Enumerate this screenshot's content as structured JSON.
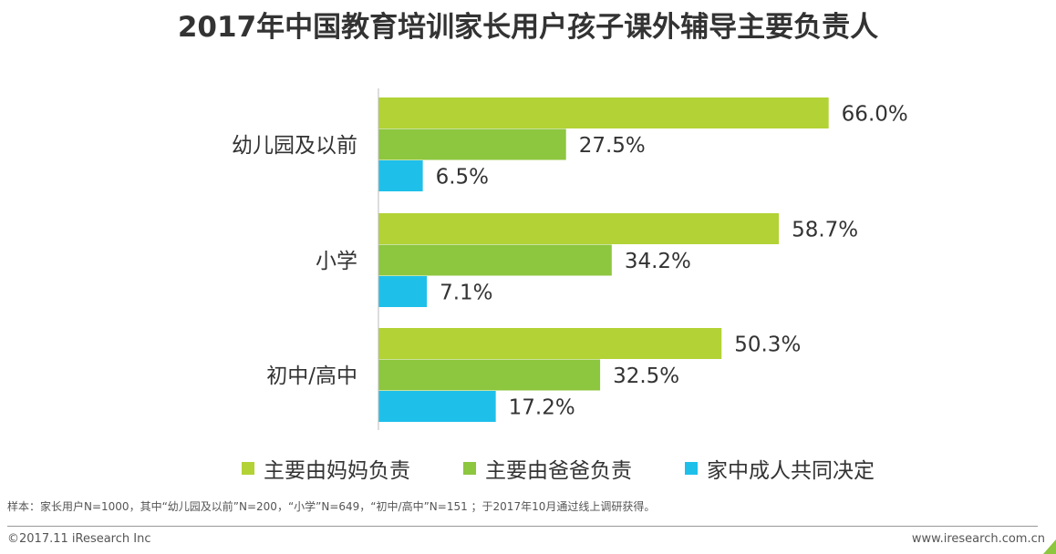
{
  "chart_data": {
    "type": "bar",
    "orientation": "horizontal",
    "title": "2017年中国教育培训家长用户孩子课外辅导主要负责人",
    "categories": [
      "幼儿园及以前",
      "小学",
      "初中/高中"
    ],
    "series": [
      {
        "name": "主要由妈妈负责",
        "color": "#b2d235",
        "values": [
          66.0,
          58.7,
          50.3
        ]
      },
      {
        "name": "主要由爸爸负责",
        "color": "#8dc63f",
        "values": [
          27.5,
          34.2,
          32.5
        ]
      },
      {
        "name": "家中成人共同决定",
        "color": "#1ec0ea",
        "values": [
          6.5,
          7.1,
          17.2
        ]
      }
    ],
    "unit": "%",
    "legend": "bottom",
    "grid": false
  },
  "footer": {
    "note": "样本：家长用户N=1000，其中“幼儿园及以前”N=200，“小学”N=649，“初中/高中”N=151 ；于2017年10月通过线上调研获得。",
    "copyright": "©2017.11 iResearch Inc",
    "url": "www.iresearch.com.cn"
  }
}
